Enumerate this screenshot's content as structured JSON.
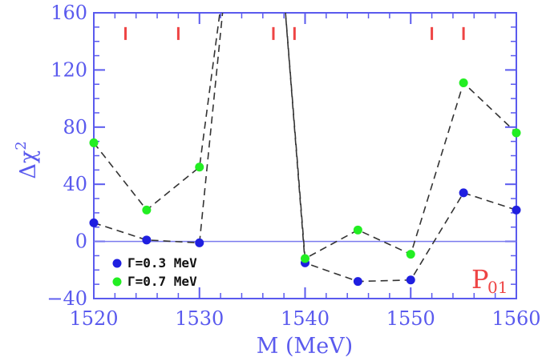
{
  "chart_data": {
    "type": "line",
    "xlabel": "M  (MeV)",
    "ylabel": "Δχ",
    "ylabel_sup": "2",
    "xlim": [
      1520,
      1560
    ],
    "ylim": [
      -40,
      160
    ],
    "x_ticks": [
      1520,
      1530,
      1540,
      1550,
      1560
    ],
    "y_ticks": [
      -40,
      0,
      40,
      80,
      120,
      160
    ],
    "x_tick_labels": [
      "1520",
      "1530",
      "1540",
      "1550",
      "1560"
    ],
    "y_tick_labels": [
      "−40",
      "0",
      "40",
      "80",
      "120",
      "160"
    ],
    "zero_line": 0,
    "series": [
      {
        "name": "Γ=0.3 MeV",
        "color": "#1f1fe0",
        "x": [
          1520,
          1525,
          1530,
          1533,
          1537.5,
          1540,
          1545,
          1550,
          1555,
          1560
        ],
        "y": [
          13,
          1,
          -1,
          220,
          220,
          -15,
          -28,
          -27,
          34,
          22
        ],
        "markers": [
          true,
          true,
          true,
          false,
          false,
          true,
          true,
          true,
          true,
          true
        ]
      },
      {
        "name": "Γ=0.7 MeV",
        "color": "#22ee22",
        "x": [
          1520,
          1525,
          1530,
          1533,
          1537.5,
          1540,
          1545,
          1550,
          1555,
          1560
        ],
        "y": [
          69,
          22,
          52,
          220,
          220,
          -12,
          8,
          -9,
          111,
          76
        ],
        "markers": [
          true,
          true,
          true,
          false,
          false,
          true,
          true,
          true,
          true,
          true
        ]
      }
    ],
    "resonance_marks": [
      1523,
      1528,
      1537,
      1539,
      1552,
      1555
    ],
    "panel_label": "P",
    "panel_label_sub": "01",
    "legend_position": "bottom-left",
    "colors": {
      "axis": "#5a5aee",
      "dash_line": "#333333",
      "marks": "#ee4444"
    }
  }
}
